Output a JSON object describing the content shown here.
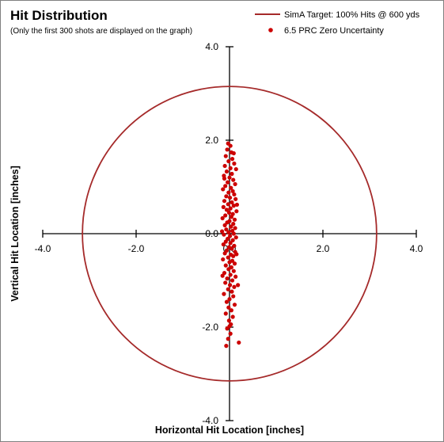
{
  "chart_data": {
    "type": "scatter",
    "title": "Hit Distribution",
    "subtitle": "(Only the first 300 shots are displayed on the graph)",
    "xlabel": "Horizontal Hit Location [inches]",
    "ylabel": "Vertical Hit Location [inches]",
    "xlim": [
      -4.0,
      4.0
    ],
    "ylim": [
      -4.0,
      4.0
    ],
    "x_ticks": [
      "-4.0",
      "-2.0",
      "0.0",
      "2.0",
      "4.0"
    ],
    "y_ticks": [
      "4.0",
      "2.0",
      "0.0",
      "-2.0",
      "-4.0"
    ],
    "x_tick_values": [
      -4,
      -2,
      0,
      2,
      4
    ],
    "y_tick_values": [
      4,
      2,
      0,
      -2,
      -4
    ],
    "grid": false,
    "legend_position": "top-right",
    "series": [
      {
        "name": "SimA Target:  100% Hits @ 600 yds",
        "kind": "circle-line",
        "color": "#a52a2a",
        "center": [
          0,
          0
        ],
        "radius": 3.15
      },
      {
        "name": "6.5 PRC Zero Uncertainty",
        "kind": "scatter",
        "color": "#cc0000",
        "points": [
          [
            -0.03,
            1.93
          ],
          [
            0.02,
            1.88
          ],
          [
            -0.05,
            1.8
          ],
          [
            0.04,
            1.74
          ],
          [
            -0.08,
            1.66
          ],
          [
            0.06,
            1.6
          ],
          [
            -0.02,
            1.55
          ],
          [
            0.1,
            1.5
          ],
          [
            -0.1,
            1.45
          ],
          [
            0.02,
            1.4
          ],
          [
            0.14,
            1.38
          ],
          [
            -0.06,
            1.33
          ],
          [
            0.05,
            1.28
          ],
          [
            -0.12,
            1.24
          ],
          [
            0.0,
            1.2
          ],
          [
            0.08,
            1.15
          ],
          [
            -0.04,
            1.1
          ],
          [
            0.12,
            1.06
          ],
          [
            -0.09,
            1.02
          ],
          [
            0.03,
            0.98
          ],
          [
            -0.14,
            0.95
          ],
          [
            0.07,
            0.91
          ],
          [
            -0.02,
            0.88
          ],
          [
            0.1,
            0.84
          ],
          [
            -0.07,
            0.8
          ],
          [
            0.01,
            0.77
          ],
          [
            0.13,
            0.74
          ],
          [
            -0.11,
            0.7
          ],
          [
            0.05,
            0.67
          ],
          [
            -0.03,
            0.63
          ],
          [
            0.09,
            0.6
          ],
          [
            -0.13,
            0.57
          ],
          [
            0.02,
            0.54
          ],
          [
            -0.06,
            0.51
          ],
          [
            0.15,
            0.48
          ],
          [
            -0.01,
            0.45
          ],
          [
            0.07,
            0.42
          ],
          [
            -0.09,
            0.39
          ],
          [
            0.04,
            0.36
          ],
          [
            -0.15,
            0.33
          ],
          [
            0.11,
            0.3
          ],
          [
            0.0,
            0.27
          ],
          [
            -0.05,
            0.24
          ],
          [
            0.08,
            0.21
          ],
          [
            -0.1,
            0.18
          ],
          [
            0.03,
            0.15
          ],
          [
            0.12,
            0.12
          ],
          [
            -0.07,
            0.09
          ],
          [
            0.06,
            0.06
          ],
          [
            -0.02,
            0.03
          ],
          [
            0.09,
            0.0
          ],
          [
            -0.12,
            -0.02
          ],
          [
            0.01,
            -0.05
          ],
          [
            0.14,
            -0.08
          ],
          [
            -0.04,
            -0.11
          ],
          [
            0.07,
            -0.14
          ],
          [
            -0.08,
            -0.17
          ],
          [
            0.02,
            -0.2
          ],
          [
            -0.13,
            -0.23
          ],
          [
            0.1,
            -0.26
          ],
          [
            -0.01,
            -0.29
          ],
          [
            0.05,
            -0.32
          ],
          [
            -0.06,
            -0.36
          ],
          [
            0.12,
            -0.39
          ],
          [
            -0.1,
            -0.42
          ],
          [
            0.03,
            -0.45
          ],
          [
            0.08,
            -0.48
          ],
          [
            -0.03,
            -0.51
          ],
          [
            -0.14,
            -0.55
          ],
          [
            0.06,
            -0.58
          ],
          [
            0.0,
            -0.61
          ],
          [
            0.11,
            -0.64
          ],
          [
            -0.08,
            -0.68
          ],
          [
            0.04,
            -0.72
          ],
          [
            -0.02,
            -0.76
          ],
          [
            0.09,
            -0.8
          ],
          [
            -0.11,
            -0.84
          ],
          [
            0.02,
            -0.88
          ],
          [
            0.13,
            -0.92
          ],
          [
            -0.05,
            -0.96
          ],
          [
            0.06,
            -1.0
          ],
          [
            -0.09,
            -1.05
          ],
          [
            0.01,
            -1.1
          ],
          [
            0.1,
            -1.14
          ],
          [
            -0.03,
            -1.19
          ],
          [
            0.05,
            -1.24
          ],
          [
            -0.12,
            -1.29
          ],
          [
            0.08,
            -1.34
          ],
          [
            0.0,
            -1.4
          ],
          [
            -0.06,
            -1.46
          ],
          [
            0.11,
            -1.52
          ],
          [
            -0.02,
            -1.58
          ],
          [
            0.04,
            -1.64
          ],
          [
            -0.08,
            -1.71
          ],
          [
            0.07,
            -1.78
          ],
          [
            -0.01,
            -1.86
          ],
          [
            0.03,
            -1.94
          ],
          [
            -0.05,
            -2.03
          ],
          [
            0.02,
            -2.14
          ],
          [
            -0.03,
            -2.25
          ],
          [
            0.09,
            1.72
          ],
          [
            -0.11,
            1.18
          ],
          [
            0.16,
            0.62
          ],
          [
            -0.16,
            0.05
          ],
          [
            0.15,
            -0.44
          ],
          [
            -0.15,
            -0.9
          ],
          [
            0.18,
            -1.1
          ],
          [
            -0.07,
            -2.4
          ],
          [
            0.2,
            -2.33
          ],
          [
            0.0,
            -1.98
          ]
        ]
      }
    ]
  }
}
